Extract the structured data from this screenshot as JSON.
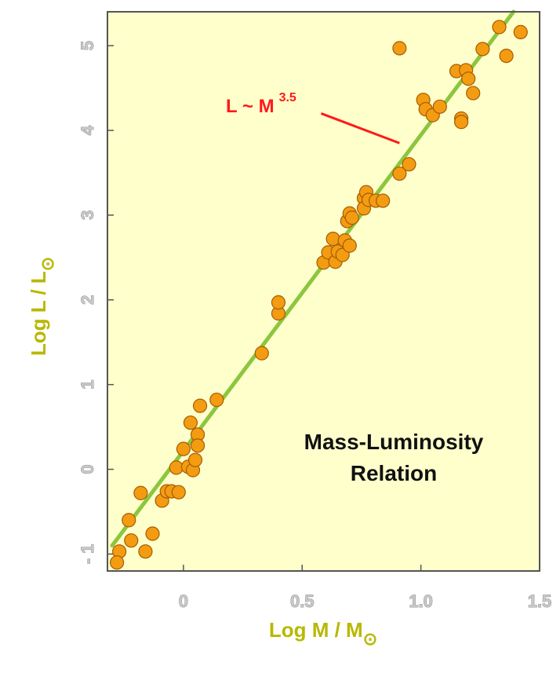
{
  "chart_data": {
    "type": "scatter",
    "title": "",
    "inset_title_line1": "Mass-Luminosity",
    "inset_title_line2": "Relation",
    "xlabel": "Log M / M",
    "xlabel_sub": "⊙",
    "ylabel": "Log L / L",
    "ylabel_sub": "⊙",
    "xlim": [
      -0.32,
      1.5
    ],
    "ylim": [
      -1.2,
      5.4
    ],
    "x_ticks": [
      0,
      0.5,
      1.0,
      1.5
    ],
    "x_tick_labels": [
      "0",
      "0.5",
      "1.0",
      "1.5"
    ],
    "y_ticks": [
      -1,
      0,
      1,
      2,
      3,
      4,
      5
    ],
    "y_tick_labels": [
      "- 1",
      "0",
      "1",
      "2",
      "3",
      "4",
      "5"
    ],
    "grid": false,
    "background_color": "#ffffcc",
    "point_color": "#f39c12",
    "point_edge_color": "#a65c00",
    "line_color": "#8cc63f",
    "annotation": {
      "text": "L ~ M",
      "superscript": "3.5",
      "color": "#ff1a1a",
      "pointer_from": [
        0.58,
        4.2
      ],
      "pointer_to": [
        0.91,
        3.85
      ]
    },
    "fit_line": {
      "x": [
        -0.3,
        1.39
      ],
      "y": [
        -0.9,
        5.4
      ]
    },
    "x": [
      -0.27,
      -0.22,
      -0.18,
      -0.16,
      -0.13,
      -0.09,
      -0.07,
      -0.05,
      -0.03,
      -0.02,
      0.0,
      0.02,
      0.03,
      0.04,
      0.05,
      0.06,
      0.06,
      0.07,
      0.14,
      0.33,
      0.4,
      0.4,
      0.59,
      0.61,
      0.63,
      0.64,
      0.65,
      0.67,
      0.68,
      0.69,
      0.7,
      0.7,
      0.71,
      0.76,
      0.76,
      0.77,
      0.78,
      0.81,
      0.84,
      0.91,
      0.91,
      0.95,
      1.01,
      1.02,
      1.05,
      1.08,
      1.15,
      1.17,
      1.17,
      1.19,
      1.2,
      1.22,
      1.26,
      1.33,
      1.36,
      1.42,
      -0.28,
      -0.23
    ],
    "y": [
      -0.97,
      -0.84,
      -0.28,
      -0.97,
      -0.76,
      -0.37,
      -0.26,
      -0.26,
      0.02,
      -0.27,
      0.24,
      0.03,
      0.55,
      -0.01,
      0.11,
      0.41,
      0.28,
      0.75,
      0.82,
      1.37,
      1.84,
      1.97,
      2.44,
      2.56,
      2.72,
      2.45,
      2.57,
      2.53,
      2.7,
      2.93,
      2.64,
      3.02,
      2.97,
      3.2,
      3.08,
      3.27,
      3.18,
      3.17,
      3.17,
      3.49,
      4.97,
      3.6,
      4.36,
      4.25,
      4.18,
      4.28,
      4.7,
      4.14,
      4.1,
      4.71,
      4.61,
      4.44,
      4.96,
      5.22,
      4.88,
      5.16,
      -1.1,
      -0.6
    ]
  }
}
